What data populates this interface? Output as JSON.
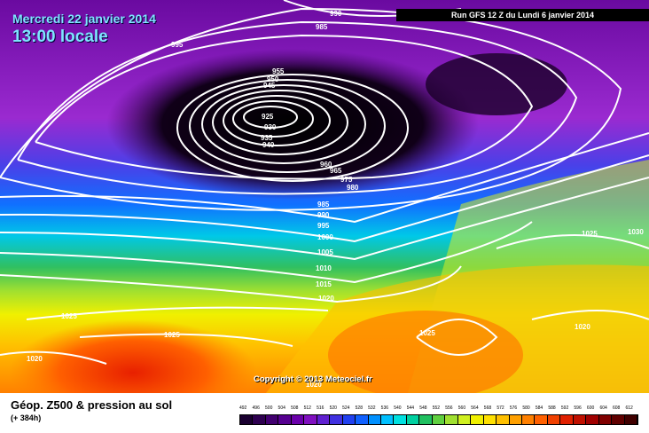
{
  "header": {
    "date": "Mercredi 22 janvier 2014",
    "time": "13:00 locale",
    "run": "Run GFS 12 Z du Lundi 6 janvier 2014"
  },
  "isobar_labels": [
    "990",
    "985",
    "995",
    "955",
    "950",
    "945",
    "925",
    "930",
    "935",
    "940",
    "960",
    "965",
    "975",
    "980",
    "985",
    "990",
    "995",
    "1000",
    "1005",
    "1010",
    "1015",
    "1020",
    "1025",
    "1025",
    "1020",
    "1025",
    "1025",
    "1030",
    "1020",
    "1020"
  ],
  "copyright": "Copyright © 2013 Meteociel.fr",
  "footer": {
    "title": "Géop. Z500 & pression au sol",
    "subtitle": "(+ 384h)"
  },
  "scale": {
    "labels": [
      "492",
      "496",
      "500",
      "504",
      "508",
      "512",
      "516",
      "520",
      "524",
      "528",
      "532",
      "536",
      "540",
      "544",
      "548",
      "552",
      "556",
      "560",
      "564",
      "568",
      "572",
      "576",
      "580",
      "584",
      "588",
      "592",
      "596",
      "600",
      "604",
      "608",
      "612"
    ],
    "colors": [
      "#1a0030",
      "#2e0050",
      "#420070",
      "#560090",
      "#6a00aa",
      "#8010c0",
      "#6020d0",
      "#4030e0",
      "#2040f0",
      "#1060ff",
      "#0090ff",
      "#00c0ff",
      "#00e0e0",
      "#00d0a0",
      "#20c060",
      "#60d040",
      "#a0e030",
      "#d0f020",
      "#f0f000",
      "#ffe000",
      "#ffc000",
      "#ffa000",
      "#ff8000",
      "#ff6000",
      "#f04000",
      "#e02000",
      "#c01000",
      "#a00000",
      "#800000",
      "#600000",
      "#400000"
    ]
  }
}
